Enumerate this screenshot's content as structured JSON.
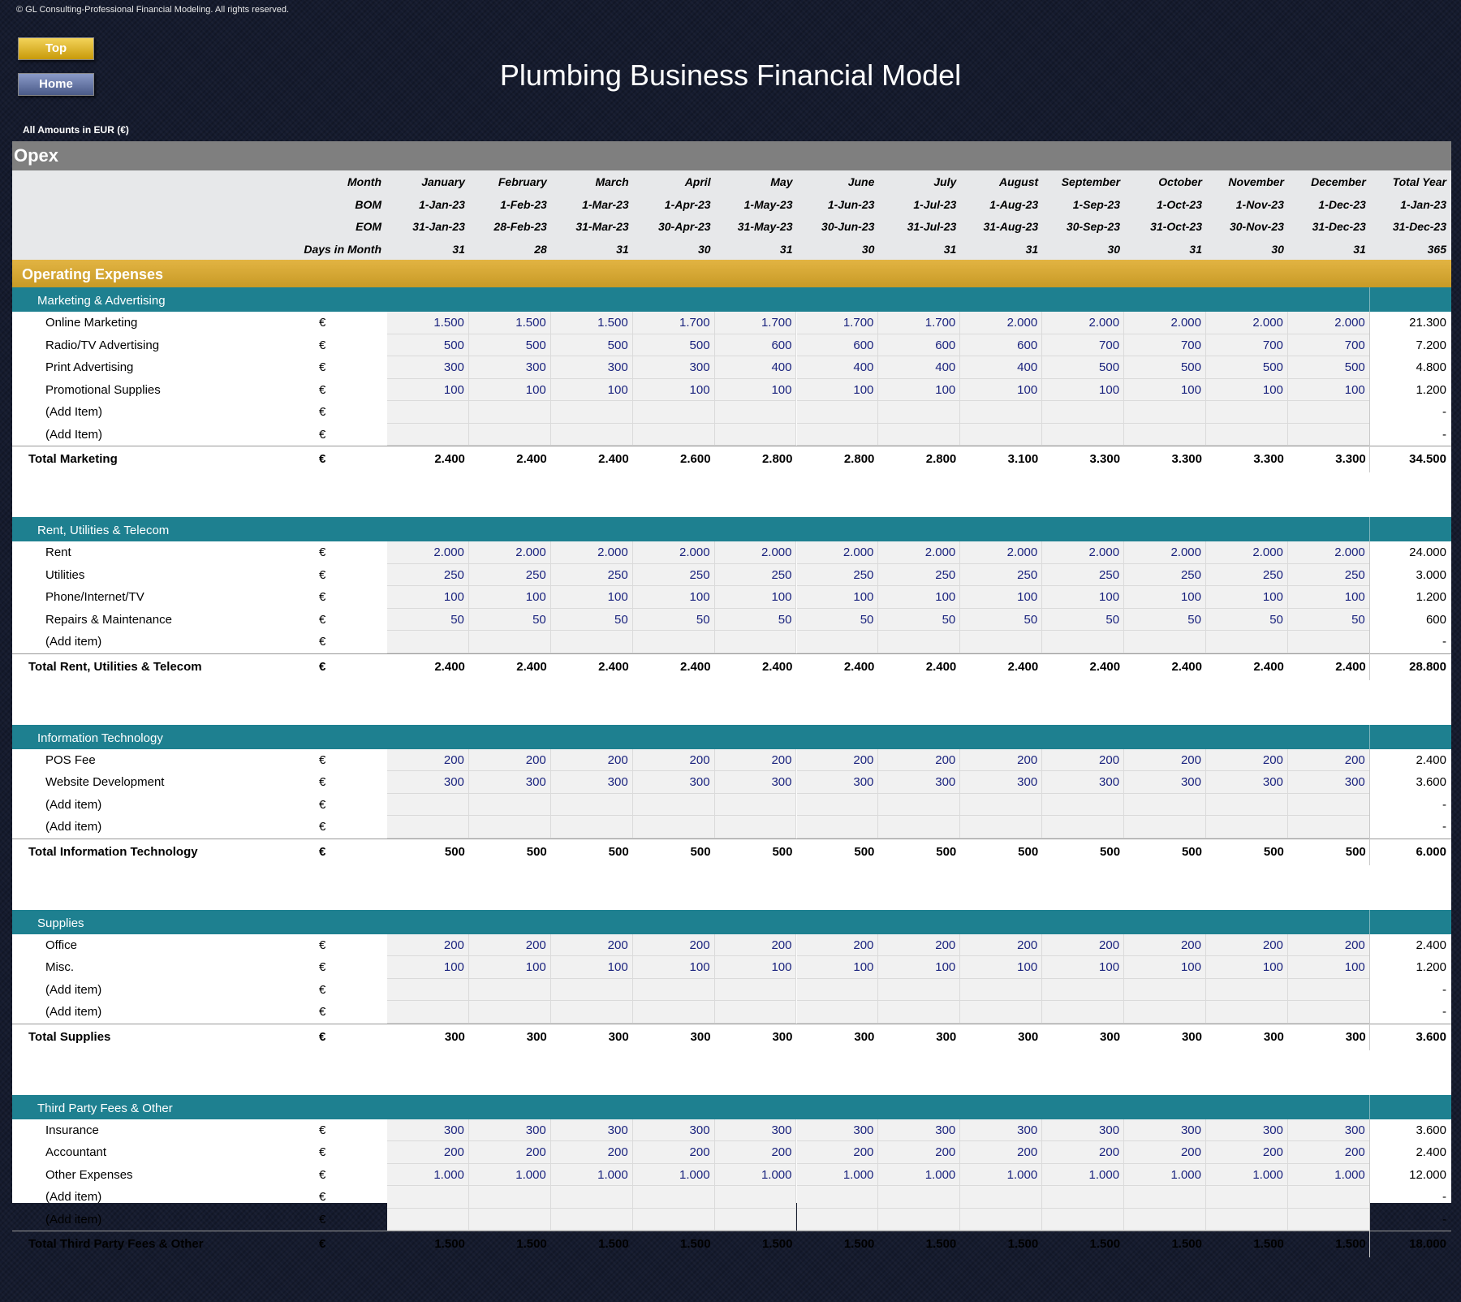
{
  "copyright": "© GL Consulting-Professional Financial Modeling. All rights reserved.",
  "nav": {
    "top": "Top",
    "home": "Home"
  },
  "title": "Plumbing Business Financial Model",
  "amounts_label": "All Amounts in  EUR (€)",
  "sheet_name": "Opex",
  "header": {
    "labels": [
      "Month",
      "BOM",
      "EOM",
      "Days in Month"
    ],
    "months": [
      "January",
      "February",
      "March",
      "April",
      "May",
      "June",
      "July",
      "August",
      "September",
      "October",
      "November",
      "December",
      "Total Year"
    ],
    "bom": [
      "1-Jan-23",
      "1-Feb-23",
      "1-Mar-23",
      "1-Apr-23",
      "1-May-23",
      "1-Jun-23",
      "1-Jul-23",
      "1-Aug-23",
      "1-Sep-23",
      "1-Oct-23",
      "1-Nov-23",
      "1-Dec-23",
      "1-Jan-23"
    ],
    "eom": [
      "31-Jan-23",
      "28-Feb-23",
      "31-Mar-23",
      "30-Apr-23",
      "31-May-23",
      "30-Jun-23",
      "31-Jul-23",
      "31-Aug-23",
      "30-Sep-23",
      "31-Oct-23",
      "30-Nov-23",
      "31-Dec-23",
      "31-Dec-23"
    ],
    "days": [
      "31",
      "28",
      "31",
      "30",
      "31",
      "30",
      "31",
      "31",
      "30",
      "31",
      "30",
      "31",
      "365"
    ]
  },
  "band_title": "Operating Expenses",
  "sections": [
    {
      "title": "Marketing & Advertising",
      "items": [
        {
          "label": "Online Marketing",
          "cur": "€",
          "values": [
            "1.500",
            "1.500",
            "1.500",
            "1.700",
            "1.700",
            "1.700",
            "1.700",
            "2.000",
            "2.000",
            "2.000",
            "2.000",
            "2.000"
          ],
          "total": "21.300"
        },
        {
          "label": "Radio/TV Advertising",
          "cur": "€",
          "values": [
            "500",
            "500",
            "500",
            "500",
            "600",
            "600",
            "600",
            "600",
            "700",
            "700",
            "700",
            "700"
          ],
          "total": "7.200"
        },
        {
          "label": "Print Advertising",
          "cur": "€",
          "values": [
            "300",
            "300",
            "300",
            "300",
            "400",
            "400",
            "400",
            "400",
            "500",
            "500",
            "500",
            "500"
          ],
          "total": "4.800"
        },
        {
          "label": "Promotional Supplies",
          "cur": "€",
          "values": [
            "100",
            "100",
            "100",
            "100",
            "100",
            "100",
            "100",
            "100",
            "100",
            "100",
            "100",
            "100"
          ],
          "total": "1.200"
        },
        {
          "label": "(Add Item)",
          "cur": "€",
          "values": [
            "",
            "",
            "",
            "",
            "",
            "",
            "",
            "",
            "",
            "",
            "",
            ""
          ],
          "total": "-"
        },
        {
          "label": "(Add Item)",
          "cur": "€",
          "values": [
            "",
            "",
            "",
            "",
            "",
            "",
            "",
            "",
            "",
            "",
            "",
            ""
          ],
          "total": "-"
        }
      ],
      "total": {
        "label": "Total Marketing",
        "cur": "€",
        "values": [
          "2.400",
          "2.400",
          "2.400",
          "2.600",
          "2.800",
          "2.800",
          "2.800",
          "3.100",
          "3.300",
          "3.300",
          "3.300",
          "3.300"
        ],
        "total": "34.500"
      }
    },
    {
      "title": "Rent, Utilities & Telecom",
      "items": [
        {
          "label": "Rent",
          "cur": "€",
          "values": [
            "2.000",
            "2.000",
            "2.000",
            "2.000",
            "2.000",
            "2.000",
            "2.000",
            "2.000",
            "2.000",
            "2.000",
            "2.000",
            "2.000"
          ],
          "total": "24.000"
        },
        {
          "label": "Utilities",
          "cur": "€",
          "values": [
            "250",
            "250",
            "250",
            "250",
            "250",
            "250",
            "250",
            "250",
            "250",
            "250",
            "250",
            "250"
          ],
          "total": "3.000"
        },
        {
          "label": "Phone/Internet/TV",
          "cur": "€",
          "values": [
            "100",
            "100",
            "100",
            "100",
            "100",
            "100",
            "100",
            "100",
            "100",
            "100",
            "100",
            "100"
          ],
          "total": "1.200"
        },
        {
          "label": "Repairs & Maintenance",
          "cur": "€",
          "values": [
            "50",
            "50",
            "50",
            "50",
            "50",
            "50",
            "50",
            "50",
            "50",
            "50",
            "50",
            "50"
          ],
          "total": "600"
        },
        {
          "label": "(Add item)",
          "cur": "€",
          "values": [
            "",
            "",
            "",
            "",
            "",
            "",
            "",
            "",
            "",
            "",
            "",
            ""
          ],
          "total": "-"
        }
      ],
      "total": {
        "label": "Total Rent, Utilities & Telecom",
        "cur": "€",
        "values": [
          "2.400",
          "2.400",
          "2.400",
          "2.400",
          "2.400",
          "2.400",
          "2.400",
          "2.400",
          "2.400",
          "2.400",
          "2.400",
          "2.400"
        ],
        "total": "28.800"
      }
    },
    {
      "title": "Information Technology",
      "items": [
        {
          "label": "POS Fee",
          "cur": "€",
          "values": [
            "200",
            "200",
            "200",
            "200",
            "200",
            "200",
            "200",
            "200",
            "200",
            "200",
            "200",
            "200"
          ],
          "total": "2.400"
        },
        {
          "label": "Website Development",
          "cur": "€",
          "values": [
            "300",
            "300",
            "300",
            "300",
            "300",
            "300",
            "300",
            "300",
            "300",
            "300",
            "300",
            "300"
          ],
          "total": "3.600"
        },
        {
          "label": "(Add item)",
          "cur": "€",
          "values": [
            "",
            "",
            "",
            "",
            "",
            "",
            "",
            "",
            "",
            "",
            "",
            ""
          ],
          "total": "-"
        },
        {
          "label": "(Add item)",
          "cur": "€",
          "values": [
            "",
            "",
            "",
            "",
            "",
            "",
            "",
            "",
            "",
            "",
            "",
            ""
          ],
          "total": "-"
        }
      ],
      "total": {
        "label": "Total Information Technology",
        "cur": "€",
        "values": [
          "500",
          "500",
          "500",
          "500",
          "500",
          "500",
          "500",
          "500",
          "500",
          "500",
          "500",
          "500"
        ],
        "total": "6.000"
      }
    },
    {
      "title": "Supplies",
      "items": [
        {
          "label": "Office",
          "cur": "€",
          "values": [
            "200",
            "200",
            "200",
            "200",
            "200",
            "200",
            "200",
            "200",
            "200",
            "200",
            "200",
            "200"
          ],
          "total": "2.400"
        },
        {
          "label": "Misc.",
          "cur": "€",
          "values": [
            "100",
            "100",
            "100",
            "100",
            "100",
            "100",
            "100",
            "100",
            "100",
            "100",
            "100",
            "100"
          ],
          "total": "1.200"
        },
        {
          "label": "(Add item)",
          "cur": "€",
          "values": [
            "",
            "",
            "",
            "",
            "",
            "",
            "",
            "",
            "",
            "",
            "",
            ""
          ],
          "total": "-"
        },
        {
          "label": "(Add item)",
          "cur": "€",
          "values": [
            "",
            "",
            "",
            "",
            "",
            "",
            "",
            "",
            "",
            "",
            "",
            ""
          ],
          "total": "-"
        }
      ],
      "total": {
        "label": "Total Supplies",
        "cur": "€",
        "values": [
          "300",
          "300",
          "300",
          "300",
          "300",
          "300",
          "300",
          "300",
          "300",
          "300",
          "300",
          "300"
        ],
        "total": "3.600"
      }
    },
    {
      "title": "Third Party Fees & Other",
      "items": [
        {
          "label": "Insurance",
          "cur": "€",
          "values": [
            "300",
            "300",
            "300",
            "300",
            "300",
            "300",
            "300",
            "300",
            "300",
            "300",
            "300",
            "300"
          ],
          "total": "3.600"
        },
        {
          "label": "Accountant",
          "cur": "€",
          "values": [
            "200",
            "200",
            "200",
            "200",
            "200",
            "200",
            "200",
            "200",
            "200",
            "200",
            "200",
            "200"
          ],
          "total": "2.400"
        },
        {
          "label": "Other Expenses",
          "cur": "€",
          "values": [
            "1.000",
            "1.000",
            "1.000",
            "1.000",
            "1.000",
            "1.000",
            "1.000",
            "1.000",
            "1.000",
            "1.000",
            "1.000",
            "1.000"
          ],
          "total": "12.000"
        },
        {
          "label": "(Add item)",
          "cur": "€",
          "values": [
            "",
            "",
            "",
            "",
            "",
            "",
            "",
            "",
            "",
            "",
            "",
            ""
          ],
          "total": "-"
        },
        {
          "label": "(Add item)",
          "cur": "€",
          "values": [
            "",
            "",
            "",
            "",
            "",
            "",
            "",
            "",
            "",
            "",
            "",
            ""
          ],
          "total": "-"
        }
      ],
      "total": {
        "label": "Total Third Party Fees & Other",
        "cur": "€",
        "values": [
          "1.500",
          "1.500",
          "1.500",
          "1.500",
          "1.500",
          "1.500",
          "1.500",
          "1.500",
          "1.500",
          "1.500",
          "1.500",
          "1.500"
        ],
        "total": "18.000"
      }
    }
  ]
}
